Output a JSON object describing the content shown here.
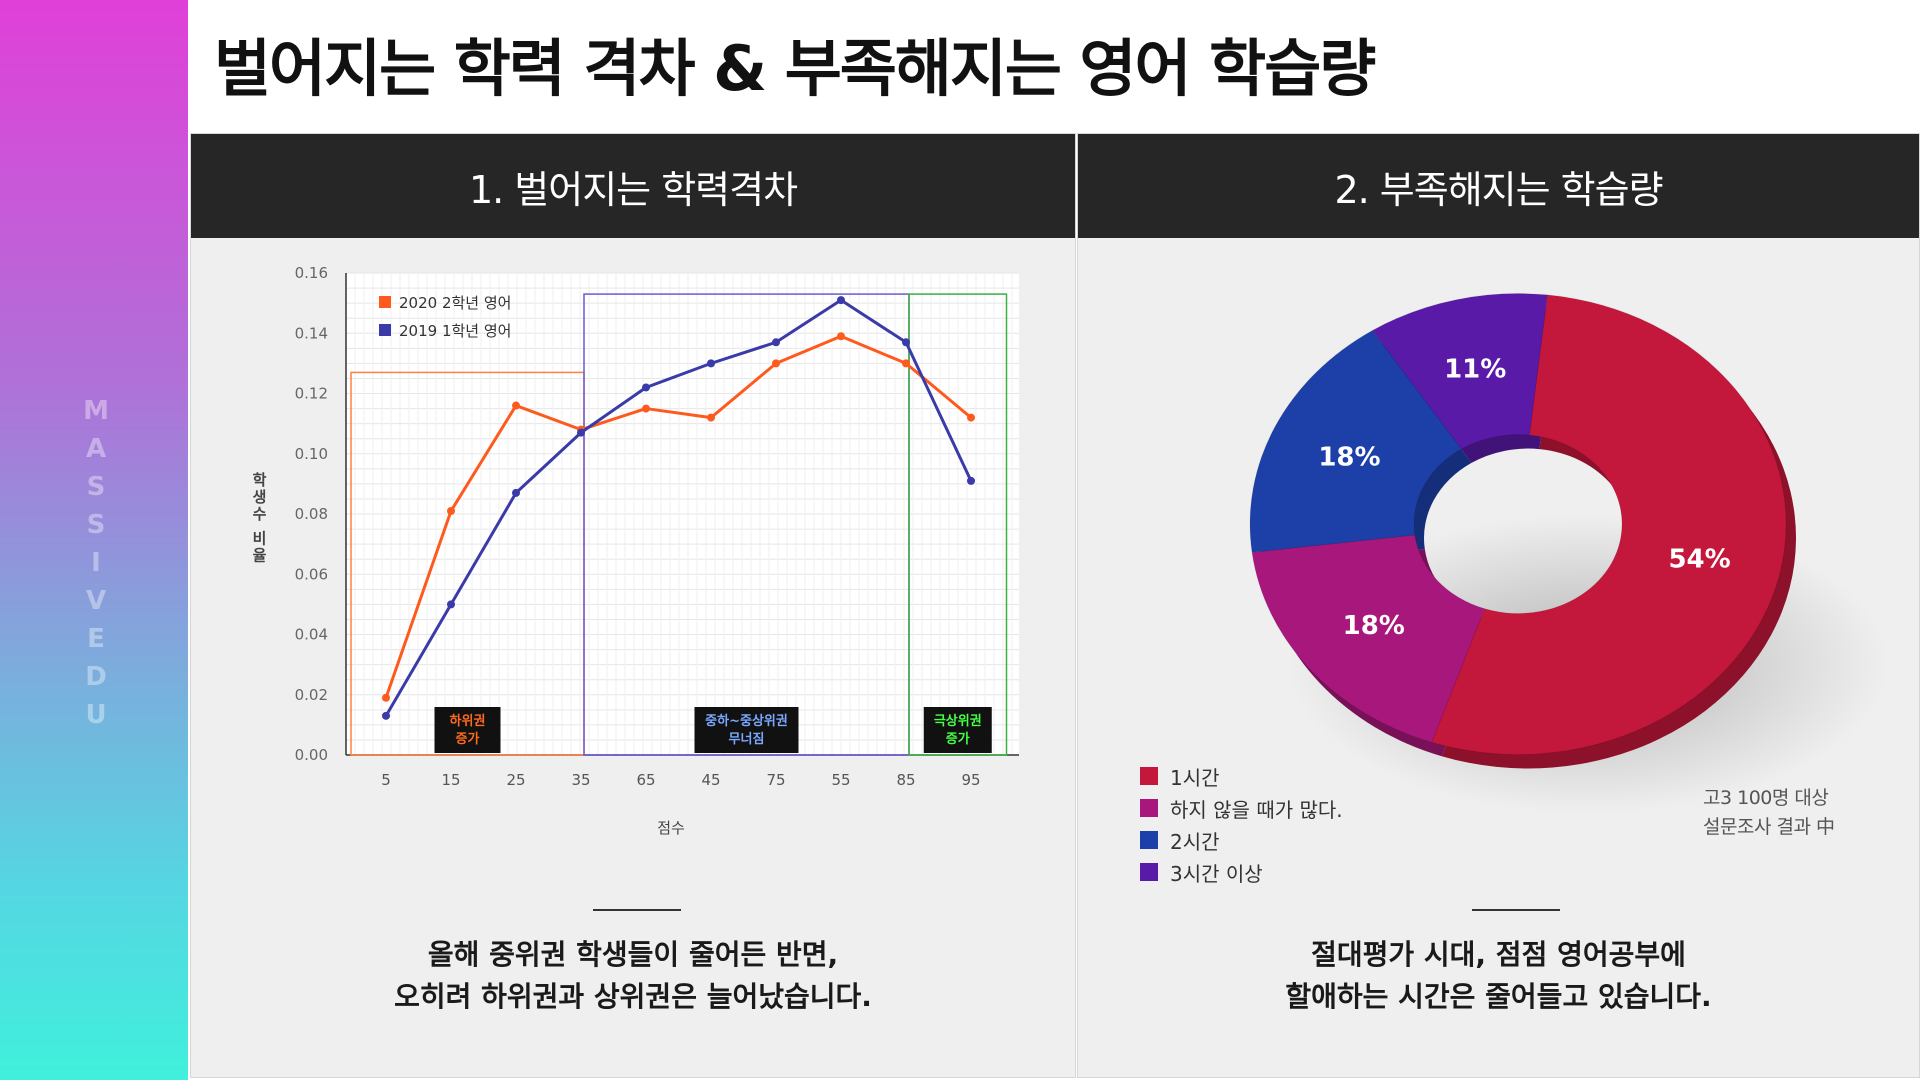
{
  "brand": "MASSIVEDU",
  "title": "벌어지는 학력 격차 & 부족해지는 영어 학습량",
  "left_panel": {
    "header": "1. 벌어지는 학력격차",
    "caption_line1": "올해 중위권 학생들이 줄어든 반면,",
    "caption_line2": "오히려 하위권과 상위권은 늘어났습니다."
  },
  "right_panel": {
    "header": "2. 부족해지는 학습량",
    "caption_line1": "절대평가 시대, 점점 영어공부에",
    "caption_line2": "할애하는 시간은 줄어들고 있습니다.",
    "note_line1": "고3 100명 대상",
    "note_line2": "설문조사 결과 中"
  },
  "chart_data": [
    {
      "type": "line",
      "xlabel": "점수",
      "ylabel": "학생수 비율",
      "categories": [
        "5",
        "15",
        "25",
        "35",
        "65",
        "45",
        "75",
        "55",
        "85",
        "95"
      ],
      "yticks": [
        "0.00",
        "0.02",
        "0.04",
        "0.06",
        "0.08",
        "0.10",
        "0.12",
        "0.14",
        "0.16"
      ],
      "ylim": [
        0,
        0.16
      ],
      "grid": true,
      "legend_position": "top-left",
      "series": [
        {
          "name": "2020 2학년 영어",
          "color": "#ff5a1e",
          "values": [
            0.019,
            0.081,
            0.116,
            0.108,
            0.115,
            0.112,
            0.13,
            0.139,
            0.13,
            0.112
          ]
        },
        {
          "name": "2019 1학년 영어",
          "color": "#3a3aa8",
          "values": [
            0.013,
            0.05,
            0.087,
            0.107,
            0.122,
            0.13,
            0.137,
            0.151,
            0.137,
            0.091
          ]
        }
      ],
      "regions": [
        {
          "label1": "하위권",
          "label2": "증가",
          "from": 0,
          "to": 3.2,
          "ymax": 0.127,
          "color": "#ff8040",
          "text_color": "#ff6a1e"
        },
        {
          "label1": "중하~중상위권",
          "label2": "무너짐",
          "from": 3.2,
          "to": 8.2,
          "ymax": 0.153,
          "color": "#6a5ad8",
          "text_color": "#7aa8ff"
        },
        {
          "label1": "극상위권",
          "label2": "증가",
          "from": 8.2,
          "to": 9.7,
          "ymax": 0.153,
          "color": "#3ab040",
          "text_color": "#44ff44"
        }
      ]
    },
    {
      "type": "pie",
      "donut": true,
      "slices": [
        {
          "label": "1시간",
          "value": 54,
          "display": "54%",
          "color": "#c4173c"
        },
        {
          "label": "하지 않을 때가 많다.",
          "value": 18,
          "display": "18%",
          "color": "#a8187c"
        },
        {
          "label": "2시간",
          "value": 18,
          "display": "18%",
          "color": "#1c40a8"
        },
        {
          "label": "3시간 이상",
          "value": 11,
          "display": "11%",
          "color": "#5a1aa8"
        }
      ],
      "legend_position": "bottom-left"
    }
  ]
}
